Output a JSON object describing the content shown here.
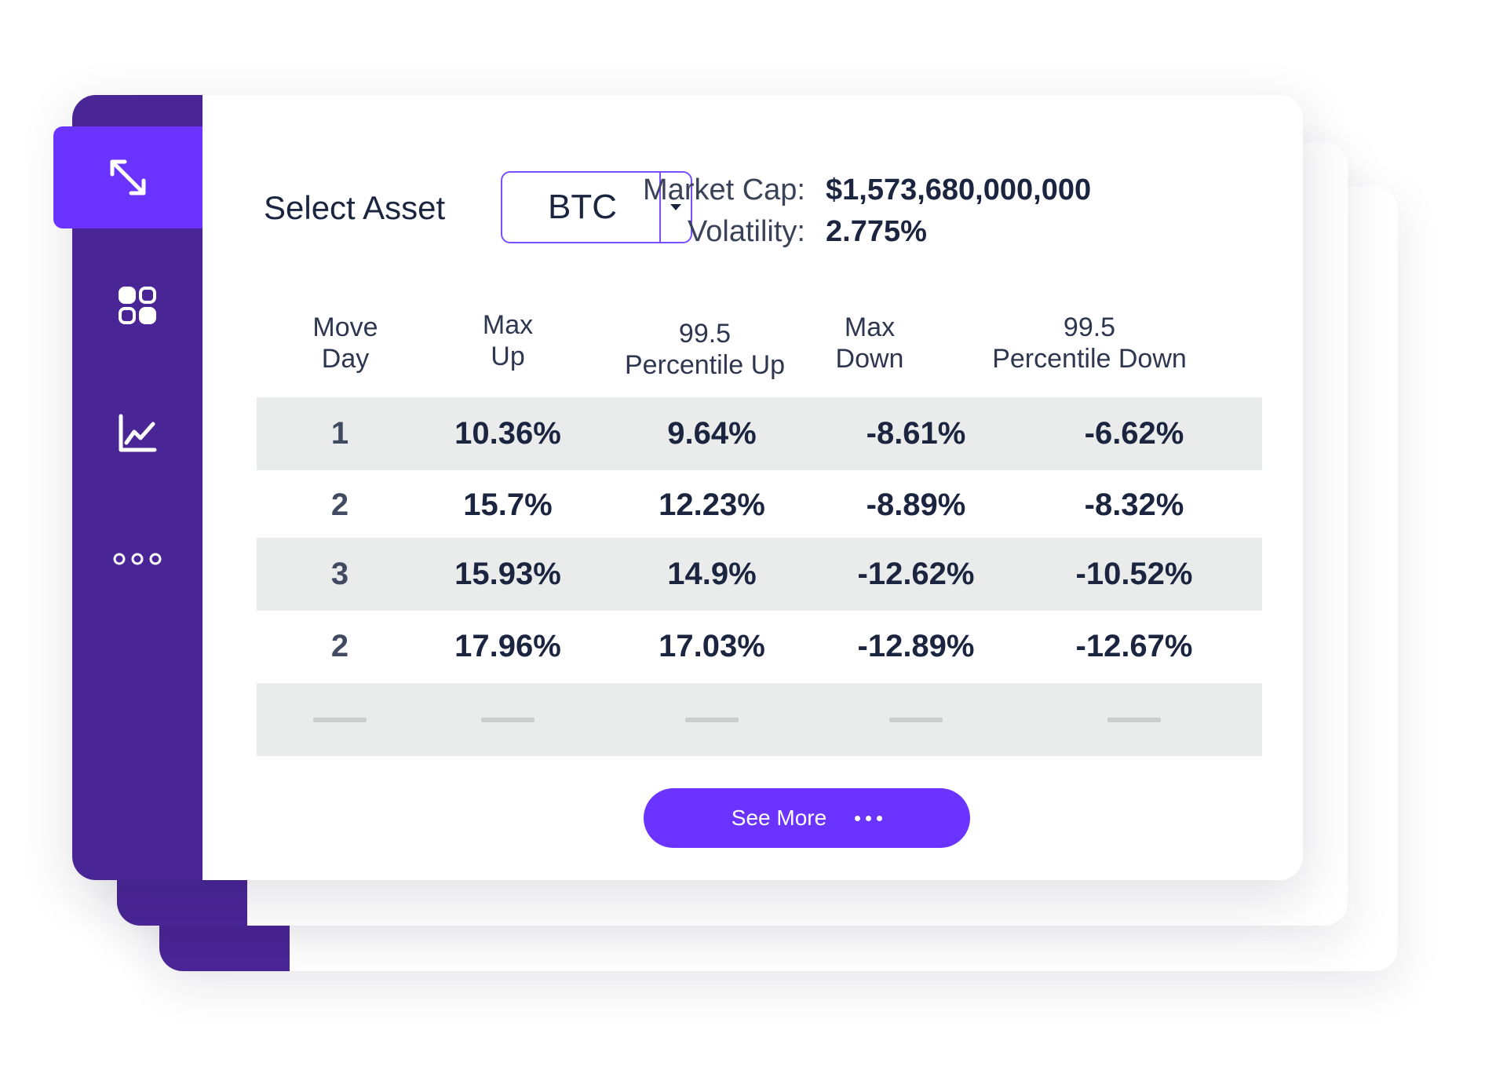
{
  "sidebar": {
    "items": [
      {
        "icon": "resize-arrows-icon",
        "active": true
      },
      {
        "icon": "apps-grid-icon",
        "active": false
      },
      {
        "icon": "line-chart-icon",
        "active": false
      },
      {
        "icon": "more-dots-icon",
        "active": false
      }
    ]
  },
  "header": {
    "select_label": "Select Asset",
    "asset_value": "BTC",
    "market_cap_label": "Market Cap:",
    "market_cap_value": "$1,573,680,000,000",
    "volatility_label": "Volatility:",
    "volatility_value": "2.775%"
  },
  "table": {
    "columns": [
      [
        "Move",
        "Day"
      ],
      [
        "Max",
        "Up"
      ],
      [
        "99.5",
        "Percentile Up"
      ],
      [
        "Max",
        "Down"
      ],
      [
        "99.5",
        "Percentile Down"
      ]
    ],
    "rows": [
      [
        "1",
        "10.36%",
        "9.64%",
        "-8.61%",
        "-6.62%"
      ],
      [
        "2",
        "15.7%",
        "12.23%",
        "-8.89%",
        "-8.32%"
      ],
      [
        "3",
        "15.93%",
        "14.9%",
        "-12.62%",
        "-10.52%"
      ],
      [
        "2",
        "17.96%",
        "17.03%",
        "-12.89%",
        "-12.67%"
      ]
    ]
  },
  "see_more_label": "See More",
  "colors": {
    "sidebar": "#4a2596",
    "accent": "#6b33ff",
    "row_shade": "#eaeceb",
    "text": "#1b2540"
  }
}
